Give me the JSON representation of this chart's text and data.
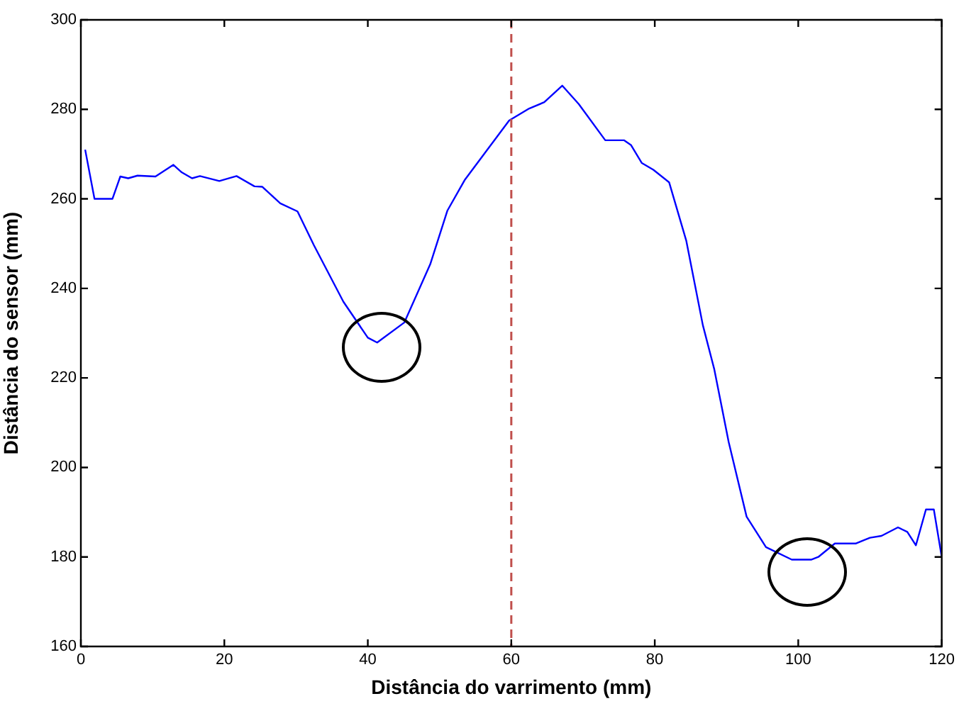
{
  "chart_data": {
    "type": "line",
    "xlabel": "Distância do varrimento (mm)",
    "ylabel": "Distância do sensor (mm)",
    "xlim": [
      0,
      120
    ],
    "ylim": [
      160,
      300
    ],
    "xticks": [
      0,
      20,
      40,
      60,
      80,
      100,
      120
    ],
    "yticks": [
      160,
      180,
      200,
      220,
      240,
      260,
      280,
      300
    ],
    "grid": false,
    "legend": false,
    "marker": "none",
    "line_style": "solid",
    "series": [
      {
        "color": "#0000ff",
        "x": [
          0.6,
          1.9,
          4.4,
          5.5,
          6.6,
          7.9,
          10.4,
          12.9,
          14,
          15.5,
          16.6,
          19.3,
          21.7,
          24.2,
          25.3,
          27.8,
          30.2,
          32.5,
          36.6,
          40,
          41.3,
          45.1,
          48.7,
          51.1,
          53.5,
          59.7,
          62.5,
          64.6,
          67.1,
          69.4,
          73.1,
          75.7,
          76.7,
          78.2,
          79.8,
          82,
          84.4,
          86.7,
          88.3,
          90.3,
          92.8,
          95.5,
          99.1,
          101.8,
          102.8,
          105.1,
          108,
          110,
          111.6,
          113.9,
          115.2,
          116.4,
          117.8,
          118.9,
          120
        ],
        "values": [
          271,
          260,
          260,
          265,
          264.6,
          265.2,
          265,
          267.6,
          266,
          264.6,
          265.1,
          264,
          265.1,
          262.8,
          262.7,
          259,
          257.2,
          249.6,
          237,
          229,
          227.9,
          232.4,
          245.4,
          257.4,
          264.2,
          277.5,
          280.2,
          281.6,
          285.3,
          281.2,
          273.1,
          273.1,
          272,
          268,
          266.5,
          263.7,
          250.6,
          231.8,
          221.9,
          205.7,
          189,
          182.2,
          179.4,
          179.4,
          180,
          183,
          183,
          184.3,
          184.7,
          186.6,
          185.6,
          182.6,
          190.6,
          190.6,
          180
        ]
      }
    ],
    "ref_lines": [
      {
        "axis": "x",
        "value": 60,
        "color": "#c0504d",
        "line_style": "dashed"
      }
    ]
  }
}
